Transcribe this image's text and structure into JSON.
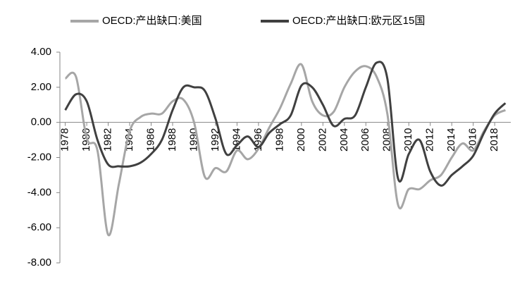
{
  "chart_data": {
    "type": "line",
    "x": [
      1978,
      1979,
      1980,
      1981,
      1982,
      1983,
      1984,
      1985,
      1986,
      1987,
      1988,
      1989,
      1990,
      1991,
      1992,
      1993,
      1994,
      1995,
      1996,
      1997,
      1998,
      1999,
      2000,
      2001,
      2002,
      2003,
      2004,
      2005,
      2006,
      2007,
      2008,
      2009,
      2010,
      2011,
      2012,
      2013,
      2014,
      2015,
      2016,
      2017,
      2018,
      2019
    ],
    "xlim": [
      1977.5,
      2019.5
    ],
    "xticks": [
      1978,
      1980,
      1982,
      1984,
      1986,
      1988,
      1990,
      1992,
      1994,
      1996,
      1998,
      2000,
      2002,
      2004,
      2006,
      2008,
      2010,
      2012,
      2014,
      2016,
      2018
    ],
    "ylim": [
      -8,
      4
    ],
    "yticks": [
      {
        "value": -8,
        "label": "-8.00"
      },
      {
        "value": -6,
        "label": "-6.00"
      },
      {
        "value": -4,
        "label": "-4.00"
      },
      {
        "value": -2,
        "label": "-2.00"
      },
      {
        "value": 0,
        "label": "0.00"
      },
      {
        "value": 2,
        "label": "2.00"
      },
      {
        "value": 4,
        "label": "4.00"
      }
    ],
    "legend": "top",
    "series": [
      {
        "name": "OECD:产出缺口:美国",
        "color": "#a6a6a6",
        "values": [
          2.5,
          2.6,
          -0.9,
          -1.6,
          -6.4,
          -3.5,
          -0.5,
          0.3,
          0.5,
          0.5,
          1.2,
          1.3,
          0.0,
          -3.1,
          -2.6,
          -2.8,
          -1.6,
          -2.1,
          -1.5,
          -0.3,
          0.8,
          2.2,
          3.3,
          1.2,
          0.4,
          0.6,
          2.0,
          2.9,
          3.2,
          2.6,
          0.5,
          -4.7,
          -3.8,
          -3.8,
          -3.3,
          -3.0,
          -2.0,
          -1.2,
          -1.6,
          -0.5,
          0.4,
          0.7
        ]
      },
      {
        "name": "OECD:产出缺口:欧元区15国",
        "color": "#404040",
        "values": [
          0.7,
          1.6,
          1.2,
          -1.0,
          -2.4,
          -2.5,
          -2.5,
          -2.3,
          -1.8,
          -1.0,
          0.7,
          2.0,
          2.0,
          1.8,
          0.2,
          -1.8,
          -1.3,
          -0.8,
          -1.4,
          -0.6,
          -0.1,
          0.4,
          2.1,
          2.0,
          1.0,
          -0.2,
          0.2,
          0.4,
          2.0,
          3.4,
          2.5,
          -3.2,
          -1.8,
          -1.0,
          -2.8,
          -3.6,
          -3.0,
          -2.5,
          -1.9,
          -0.6,
          0.5,
          1.1
        ]
      }
    ]
  }
}
